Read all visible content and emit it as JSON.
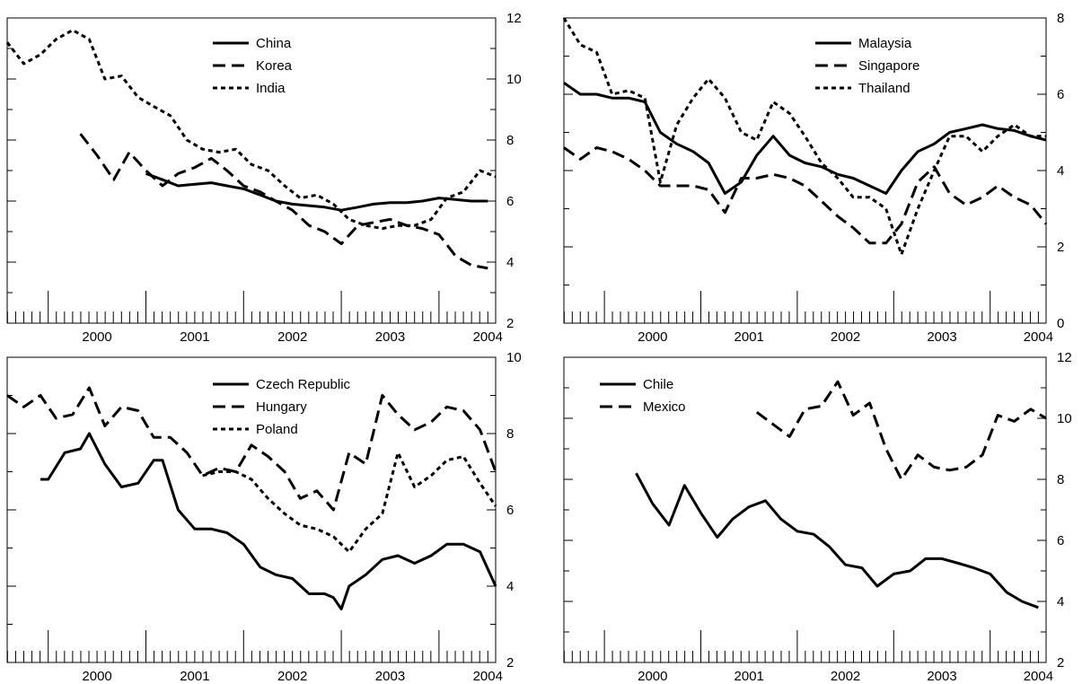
{
  "chart_data": [
    {
      "type": "line",
      "x_axis": {
        "min": 1999.58,
        "max": 2004.58,
        "tick_labels": [
          "2000",
          "2001",
          "2002",
          "2003",
          "2004"
        ],
        "tick_values": [
          2000,
          2001,
          2002,
          2003,
          2004
        ]
      },
      "y_axis": {
        "side": "right",
        "ylim": [
          2,
          12
        ],
        "ticks": [
          2,
          4,
          6,
          8,
          10,
          12
        ],
        "tick_labels": [
          "2",
          "4",
          "6",
          "8",
          "10",
          "12"
        ]
      },
      "grid": false,
      "legend": {
        "placement": "top-center"
      },
      "series": [
        {
          "name": "China",
          "style": "solid",
          "x": [
            2001.0,
            2001.17,
            2001.33,
            2001.5,
            2001.67,
            2001.83,
            2002.0,
            2002.17,
            2002.33,
            2002.5,
            2002.67,
            2002.83,
            2003.0,
            2003.17,
            2003.33,
            2003.5,
            2003.67,
            2003.83,
            2004.0,
            2004.17,
            2004.33,
            2004.5
          ],
          "y": [
            6.9,
            6.7,
            6.5,
            6.55,
            6.6,
            6.5,
            6.4,
            6.2,
            6.0,
            5.9,
            5.85,
            5.8,
            5.7,
            5.8,
            5.9,
            5.95,
            5.95,
            6.0,
            6.1,
            6.05,
            6.0,
            6.0
          ]
        },
        {
          "name": "Korea",
          "style": "dashed",
          "x": [
            2000.33,
            2000.5,
            2000.67,
            2000.83,
            2001.0,
            2001.17,
            2001.33,
            2001.5,
            2001.67,
            2001.83,
            2002.0,
            2002.17,
            2002.33,
            2002.5,
            2002.67,
            2002.83,
            2003.0,
            2003.17,
            2003.33,
            2003.5,
            2003.67,
            2003.83,
            2004.0,
            2004.17,
            2004.33,
            2004.5
          ],
          "y": [
            8.2,
            7.5,
            6.7,
            7.6,
            7.0,
            6.5,
            6.9,
            7.1,
            7.4,
            7.0,
            6.5,
            6.3,
            6.0,
            5.7,
            5.2,
            5.0,
            4.6,
            5.2,
            5.3,
            5.4,
            5.2,
            5.1,
            4.9,
            4.2,
            3.9,
            3.8
          ]
        },
        {
          "name": "India",
          "style": "dotted",
          "x": [
            1999.58,
            1999.75,
            1999.92,
            2000.08,
            2000.25,
            2000.42,
            2000.58,
            2000.75,
            2000.92,
            2001.08,
            2001.25,
            2001.42,
            2001.58,
            2001.75,
            2001.92,
            2002.08,
            2002.25,
            2002.42,
            2002.58,
            2002.75,
            2002.92,
            2003.08,
            2003.25,
            2003.42,
            2003.58,
            2003.75,
            2003.92,
            2004.08,
            2004.25,
            2004.42,
            2004.58
          ],
          "y": [
            11.2,
            10.5,
            10.8,
            11.3,
            11.6,
            11.3,
            10.0,
            10.1,
            9.4,
            9.1,
            8.8,
            8.0,
            7.7,
            7.6,
            7.7,
            7.2,
            7.0,
            6.5,
            6.1,
            6.2,
            5.9,
            5.4,
            5.2,
            5.1,
            5.2,
            5.2,
            5.4,
            6.1,
            6.3,
            7.0,
            6.8
          ]
        }
      ]
    },
    {
      "type": "line",
      "x_axis": {
        "min": 1999.58,
        "max": 2004.58,
        "tick_labels": [
          "2000",
          "2001",
          "2002",
          "2003",
          "2004"
        ],
        "tick_values": [
          2000,
          2001,
          2002,
          2003,
          2004
        ]
      },
      "y_axis": {
        "side": "right",
        "ylim": [
          0,
          8
        ],
        "ticks": [
          0,
          2,
          4,
          6,
          8
        ],
        "tick_labels": [
          "0",
          "2",
          "4",
          "6",
          "8"
        ]
      },
      "grid": false,
      "legend": {
        "placement": "top-right"
      },
      "series": [
        {
          "name": "Malaysia",
          "style": "solid",
          "x": [
            1999.58,
            1999.75,
            1999.92,
            2000.08,
            2000.25,
            2000.42,
            2000.58,
            2000.75,
            2000.92,
            2001.08,
            2001.25,
            2001.42,
            2001.58,
            2001.75,
            2001.92,
            2002.08,
            2002.25,
            2002.42,
            2002.58,
            2002.75,
            2002.92,
            2003.08,
            2003.25,
            2003.42,
            2003.58,
            2003.75,
            2003.92,
            2004.08,
            2004.25,
            2004.42,
            2004.58
          ],
          "y": [
            6.3,
            6.0,
            6.0,
            5.9,
            5.9,
            5.8,
            5.0,
            4.7,
            4.5,
            4.2,
            3.4,
            3.7,
            4.4,
            4.9,
            4.4,
            4.2,
            4.1,
            3.9,
            3.8,
            3.6,
            3.4,
            4.0,
            4.5,
            4.7,
            5.0,
            5.1,
            5.2,
            5.1,
            5.05,
            4.9,
            4.8
          ]
        },
        {
          "name": "Singapore",
          "style": "dashed",
          "x": [
            1999.58,
            1999.75,
            1999.92,
            2000.08,
            2000.25,
            2000.42,
            2000.58,
            2000.75,
            2000.92,
            2001.08,
            2001.25,
            2001.42,
            2001.58,
            2001.75,
            2001.92,
            2002.08,
            2002.25,
            2002.42,
            2002.58,
            2002.75,
            2002.92,
            2003.08,
            2003.25,
            2003.42,
            2003.58,
            2003.75,
            2003.92,
            2004.08,
            2004.25,
            2004.42,
            2004.58
          ],
          "y": [
            4.6,
            4.3,
            4.6,
            4.5,
            4.3,
            4.0,
            3.6,
            3.6,
            3.6,
            3.5,
            2.9,
            3.8,
            3.8,
            3.9,
            3.8,
            3.6,
            3.2,
            2.8,
            2.5,
            2.1,
            2.1,
            2.6,
            3.7,
            4.1,
            3.4,
            3.1,
            3.3,
            3.6,
            3.3,
            3.1,
            2.6
          ]
        },
        {
          "name": "Thailand",
          "style": "dotted",
          "x": [
            1999.58,
            1999.75,
            1999.92,
            2000.08,
            2000.25,
            2000.42,
            2000.58,
            2000.75,
            2000.92,
            2001.08,
            2001.25,
            2001.42,
            2001.58,
            2001.75,
            2001.92,
            2002.08,
            2002.25,
            2002.42,
            2002.58,
            2002.75,
            2002.92,
            2003.08,
            2003.25,
            2003.42,
            2003.58,
            2003.75,
            2003.92,
            2004.08,
            2004.25,
            2004.42,
            2004.58
          ],
          "y": [
            8.0,
            7.3,
            7.1,
            6.0,
            6.1,
            5.9,
            3.7,
            5.2,
            5.9,
            6.4,
            5.9,
            5.0,
            4.8,
            5.8,
            5.5,
            4.9,
            4.2,
            3.8,
            3.3,
            3.3,
            3.0,
            1.8,
            3.0,
            4.0,
            4.9,
            4.9,
            4.5,
            4.9,
            5.2,
            4.9,
            4.9
          ]
        }
      ]
    },
    {
      "type": "line",
      "x_axis": {
        "min": 1999.58,
        "max": 2004.58,
        "tick_labels": [
          "2000",
          "2001",
          "2002",
          "2003",
          "2004"
        ],
        "tick_values": [
          2000,
          2001,
          2002,
          2003,
          2004
        ]
      },
      "y_axis": {
        "side": "right",
        "ylim": [
          2,
          10
        ],
        "ticks": [
          2,
          4,
          6,
          8,
          10
        ],
        "tick_labels": [
          "2",
          "4",
          "6",
          "8",
          "10"
        ]
      },
      "grid": false,
      "legend": {
        "placement": "top-center"
      },
      "series": [
        {
          "name": "Czech Republic",
          "style": "solid",
          "x": [
            1999.92,
            2000.0,
            2000.17,
            2000.33,
            2000.42,
            2000.58,
            2000.75,
            2000.92,
            2001.08,
            2001.17,
            2001.33,
            2001.5,
            2001.67,
            2001.83,
            2002.0,
            2002.17,
            2002.33,
            2002.5,
            2002.67,
            2002.83,
            2002.92,
            2003.0,
            2003.08,
            2003.25,
            2003.42,
            2003.58,
            2003.75,
            2003.92,
            2004.08,
            2004.25,
            2004.42,
            2004.58
          ],
          "y": [
            6.8,
            6.8,
            7.5,
            7.6,
            8.0,
            7.2,
            6.6,
            6.7,
            7.3,
            7.3,
            6.0,
            5.5,
            5.5,
            5.4,
            5.1,
            4.5,
            4.3,
            4.2,
            3.8,
            3.8,
            3.7,
            3.4,
            4.0,
            4.3,
            4.7,
            4.8,
            4.6,
            4.8,
            5.1,
            5.1,
            4.9,
            4.0
          ]
        },
        {
          "name": "Hungary",
          "style": "dashed",
          "x": [
            1999.58,
            1999.75,
            1999.92,
            2000.08,
            2000.25,
            2000.42,
            2000.58,
            2000.75,
            2000.92,
            2001.08,
            2001.25,
            2001.42,
            2001.58,
            2001.75,
            2001.92,
            2002.08,
            2002.25,
            2002.42,
            2002.58,
            2002.75,
            2002.92,
            2003.08,
            2003.25,
            2003.42,
            2003.58,
            2003.75,
            2003.92,
            2004.08,
            2004.25,
            2004.42,
            2004.58
          ],
          "y": [
            9.0,
            8.7,
            9.0,
            8.4,
            8.5,
            9.2,
            8.2,
            8.7,
            8.6,
            7.9,
            7.9,
            7.5,
            6.9,
            7.1,
            7.0,
            7.7,
            7.4,
            7.0,
            6.3,
            6.5,
            6.0,
            7.5,
            7.2,
            9.0,
            8.5,
            8.1,
            8.3,
            8.7,
            8.6,
            8.1,
            7.0
          ]
        },
        {
          "name": "Poland",
          "style": "dotted",
          "x": [
            2001.58,
            2001.75,
            2001.92,
            2002.08,
            2002.25,
            2002.42,
            2002.58,
            2002.75,
            2002.92,
            2003.08,
            2003.25,
            2003.42,
            2003.58,
            2003.75,
            2003.92,
            2004.08,
            2004.25,
            2004.42,
            2004.58
          ],
          "y": [
            6.9,
            7.0,
            7.0,
            6.8,
            6.3,
            5.9,
            5.6,
            5.5,
            5.3,
            4.9,
            5.5,
            5.9,
            7.5,
            6.6,
            6.9,
            7.3,
            7.4,
            6.7,
            6.1
          ]
        }
      ]
    },
    {
      "type": "line",
      "x_axis": {
        "min": 1999.58,
        "max": 2004.58,
        "tick_labels": [
          "2000",
          "2001",
          "2002",
          "2003",
          "2004"
        ],
        "tick_values": [
          2000,
          2001,
          2002,
          2003,
          2004
        ]
      },
      "y_axis": {
        "side": "right",
        "ylim": [
          2,
          12
        ],
        "ticks": [
          2,
          4,
          6,
          8,
          10,
          12
        ],
        "tick_labels": [
          "2",
          "4",
          "6",
          "8",
          "10",
          "12"
        ]
      },
      "grid": false,
      "legend": {
        "placement": "top-left"
      },
      "series": [
        {
          "name": "Chile",
          "style": "solid",
          "x": [
            2000.33,
            2000.5,
            2000.67,
            2000.83,
            2001.0,
            2001.17,
            2001.33,
            2001.5,
            2001.67,
            2001.83,
            2002.0,
            2002.17,
            2002.33,
            2002.5,
            2002.67,
            2002.83,
            2003.0,
            2003.17,
            2003.33,
            2003.5,
            2003.67,
            2003.83,
            2004.0,
            2004.17,
            2004.33,
            2004.5
          ],
          "y": [
            8.2,
            7.2,
            6.5,
            7.8,
            6.9,
            6.1,
            6.7,
            7.1,
            7.3,
            6.7,
            6.3,
            6.2,
            5.8,
            5.2,
            5.1,
            4.5,
            4.9,
            5.0,
            5.4,
            5.4,
            5.25,
            5.1,
            4.9,
            4.3,
            4.0,
            3.8
          ]
        },
        {
          "name": "Mexico",
          "style": "dashed",
          "x": [
            2001.58,
            2001.75,
            2001.92,
            2002.08,
            2002.25,
            2002.42,
            2002.58,
            2002.75,
            2002.92,
            2003.08,
            2003.25,
            2003.42,
            2003.58,
            2003.75,
            2003.92,
            2004.08,
            2004.25,
            2004.42,
            2004.58
          ],
          "y": [
            10.2,
            9.8,
            9.4,
            10.3,
            10.4,
            11.2,
            10.1,
            10.5,
            9.0,
            8.0,
            8.8,
            8.4,
            8.3,
            8.4,
            8.8,
            10.1,
            9.9,
            10.3,
            10.0
          ]
        }
      ]
    }
  ]
}
